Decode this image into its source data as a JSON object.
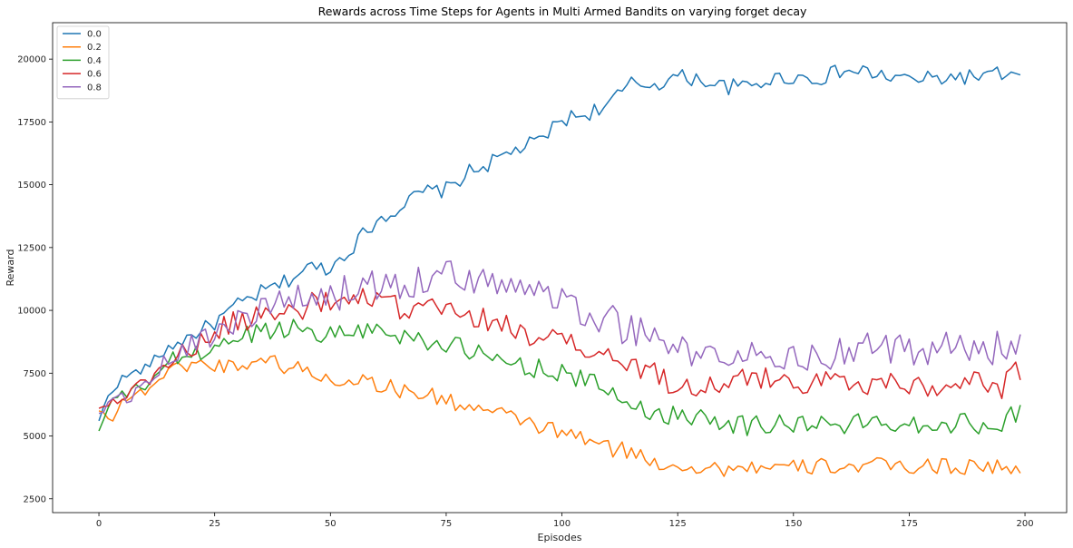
{
  "chart_data": {
    "type": "line",
    "title": "Rewards across Time Steps for Agents in Multi Armed Bandits on varying forget decay",
    "xlabel": "Episodes",
    "ylabel": "Reward",
    "xlim": [
      -10,
      209
    ],
    "ylim": [
      1950,
      21450
    ],
    "xticks": [
      0,
      25,
      50,
      75,
      100,
      125,
      150,
      175,
      200
    ],
    "yticks": [
      2500,
      5000,
      7500,
      10000,
      12500,
      15000,
      17500,
      20000
    ],
    "grid": false,
    "legend_position": "top-left",
    "series": [
      {
        "name": "0.0",
        "color": "#1f77b4",
        "keypoints": [
          [
            0,
            5600
          ],
          [
            2,
            6600
          ],
          [
            5,
            7300
          ],
          [
            10,
            7700
          ],
          [
            15,
            8500
          ],
          [
            20,
            9000
          ],
          [
            25,
            9500
          ],
          [
            30,
            10200
          ],
          [
            35,
            10700
          ],
          [
            40,
            11100
          ],
          [
            45,
            11700
          ],
          [
            50,
            11700
          ],
          [
            55,
            12600
          ],
          [
            60,
            13600
          ],
          [
            65,
            14100
          ],
          [
            70,
            14700
          ],
          [
            75,
            14800
          ],
          [
            80,
            15500
          ],
          [
            85,
            15900
          ],
          [
            90,
            16400
          ],
          [
            95,
            16700
          ],
          [
            100,
            17600
          ],
          [
            105,
            17800
          ],
          [
            110,
            18200
          ],
          [
            115,
            19000
          ],
          [
            120,
            19000
          ],
          [
            125,
            19300
          ],
          [
            130,
            19200
          ],
          [
            135,
            18900
          ],
          [
            140,
            18900
          ],
          [
            145,
            19200
          ],
          [
            150,
            19300
          ],
          [
            155,
            19200
          ],
          [
            160,
            19500
          ],
          [
            165,
            19500
          ],
          [
            170,
            19300
          ],
          [
            175,
            19200
          ],
          [
            180,
            19200
          ],
          [
            185,
            19300
          ],
          [
            190,
            19300
          ],
          [
            195,
            19400
          ],
          [
            199,
            19250
          ]
        ]
      },
      {
        "name": "0.2",
        "color": "#ff7f0e",
        "keypoints": [
          [
            0,
            6000
          ],
          [
            3,
            5700
          ],
          [
            5,
            6400
          ],
          [
            10,
            6800
          ],
          [
            15,
            7600
          ],
          [
            20,
            7900
          ],
          [
            25,
            7800
          ],
          [
            30,
            7800
          ],
          [
            35,
            8100
          ],
          [
            40,
            7800
          ],
          [
            45,
            7600
          ],
          [
            50,
            7200
          ],
          [
            55,
            7300
          ],
          [
            60,
            7100
          ],
          [
            65,
            6800
          ],
          [
            70,
            6700
          ],
          [
            75,
            6400
          ],
          [
            80,
            6200
          ],
          [
            85,
            5900
          ],
          [
            90,
            5700
          ],
          [
            95,
            5400
          ],
          [
            100,
            5100
          ],
          [
            105,
            4900
          ],
          [
            110,
            4500
          ],
          [
            115,
            4400
          ],
          [
            120,
            3900
          ],
          [
            125,
            3900
          ],
          [
            130,
            3700
          ],
          [
            135,
            3700
          ],
          [
            140,
            3800
          ],
          [
            145,
            3700
          ],
          [
            150,
            3700
          ],
          [
            155,
            3800
          ],
          [
            160,
            3800
          ],
          [
            165,
            3800
          ],
          [
            170,
            3800
          ],
          [
            175,
            3800
          ],
          [
            180,
            3800
          ],
          [
            185,
            3800
          ],
          [
            190,
            3800
          ],
          [
            195,
            3800
          ],
          [
            199,
            3450
          ]
        ]
      },
      {
        "name": "0.4",
        "color": "#2ca02c",
        "keypoints": [
          [
            0,
            5200
          ],
          [
            3,
            6500
          ],
          [
            5,
            6600
          ],
          [
            10,
            7000
          ],
          [
            15,
            8000
          ],
          [
            20,
            8200
          ],
          [
            25,
            8500
          ],
          [
            30,
            8900
          ],
          [
            35,
            9200
          ],
          [
            40,
            9300
          ],
          [
            45,
            9300
          ],
          [
            50,
            9000
          ],
          [
            55,
            9300
          ],
          [
            60,
            9200
          ],
          [
            65,
            9000
          ],
          [
            70,
            8900
          ],
          [
            75,
            8600
          ],
          [
            80,
            8400
          ],
          [
            85,
            8000
          ],
          [
            90,
            7900
          ],
          [
            95,
            7700
          ],
          [
            100,
            7500
          ],
          [
            105,
            7200
          ],
          [
            110,
            6800
          ],
          [
            115,
            6300
          ],
          [
            120,
            5900
          ],
          [
            125,
            5800
          ],
          [
            130,
            5900
          ],
          [
            135,
            5600
          ],
          [
            140,
            5400
          ],
          [
            145,
            5500
          ],
          [
            150,
            5500
          ],
          [
            155,
            5500
          ],
          [
            160,
            5400
          ],
          [
            165,
            5500
          ],
          [
            170,
            5600
          ],
          [
            175,
            5500
          ],
          [
            180,
            5500
          ],
          [
            185,
            5500
          ],
          [
            190,
            5500
          ],
          [
            195,
            5600
          ],
          [
            199,
            5950
          ]
        ]
      },
      {
        "name": "0.6",
        "color": "#d62728",
        "keypoints": [
          [
            0,
            6100
          ],
          [
            3,
            6400
          ],
          [
            5,
            6600
          ],
          [
            10,
            7100
          ],
          [
            15,
            8000
          ],
          [
            20,
            8500
          ],
          [
            25,
            9000
          ],
          [
            30,
            9600
          ],
          [
            35,
            9800
          ],
          [
            40,
            9900
          ],
          [
            45,
            10200
          ],
          [
            50,
            10300
          ],
          [
            55,
            10400
          ],
          [
            60,
            10300
          ],
          [
            65,
            10100
          ],
          [
            70,
            10100
          ],
          [
            75,
            9900
          ],
          [
            80,
            9800
          ],
          [
            85,
            9500
          ],
          [
            90,
            9300
          ],
          [
            95,
            9000
          ],
          [
            100,
            8700
          ],
          [
            105,
            8400
          ],
          [
            110,
            8100
          ],
          [
            115,
            7900
          ],
          [
            120,
            7400
          ],
          [
            125,
            7100
          ],
          [
            130,
            7000
          ],
          [
            135,
            7100
          ],
          [
            140,
            7200
          ],
          [
            145,
            7300
          ],
          [
            150,
            7200
          ],
          [
            155,
            7200
          ],
          [
            160,
            7200
          ],
          [
            165,
            7100
          ],
          [
            170,
            7100
          ],
          [
            175,
            7100
          ],
          [
            180,
            7100
          ],
          [
            185,
            7100
          ],
          [
            190,
            7100
          ],
          [
            195,
            7000
          ],
          [
            199,
            7600
          ]
        ]
      },
      {
        "name": "0.8",
        "color": "#9467bd",
        "keypoints": [
          [
            0,
            5900
          ],
          [
            3,
            6300
          ],
          [
            5,
            6400
          ],
          [
            10,
            7100
          ],
          [
            15,
            8000
          ],
          [
            20,
            8600
          ],
          [
            25,
            9200
          ],
          [
            30,
            9700
          ],
          [
            35,
            10000
          ],
          [
            40,
            10200
          ],
          [
            45,
            10400
          ],
          [
            50,
            10600
          ],
          [
            55,
            10800
          ],
          [
            60,
            11000
          ],
          [
            65,
            11100
          ],
          [
            70,
            11300
          ],
          [
            75,
            11300
          ],
          [
            80,
            11300
          ],
          [
            85,
            11200
          ],
          [
            90,
            11000
          ],
          [
            95,
            10700
          ],
          [
            100,
            10400
          ],
          [
            105,
            10000
          ],
          [
            110,
            9600
          ],
          [
            115,
            9200
          ],
          [
            120,
            8800
          ],
          [
            125,
            8500
          ],
          [
            130,
            8200
          ],
          [
            135,
            8100
          ],
          [
            140,
            8100
          ],
          [
            145,
            8200
          ],
          [
            150,
            8200
          ],
          [
            155,
            8200
          ],
          [
            160,
            8300
          ],
          [
            165,
            8400
          ],
          [
            170,
            8400
          ],
          [
            175,
            8500
          ],
          [
            180,
            8500
          ],
          [
            185,
            8500
          ],
          [
            190,
            8500
          ],
          [
            195,
            8500
          ],
          [
            199,
            9100
          ]
        ]
      }
    ]
  }
}
